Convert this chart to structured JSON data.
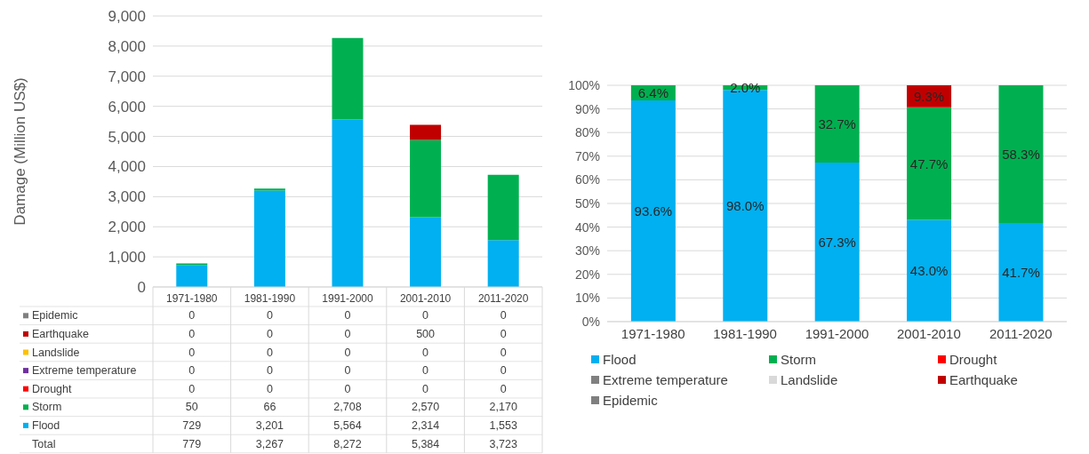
{
  "chart_data": [
    {
      "type": "bar",
      "stacked": true,
      "ylabel": "Damage (Million US$)",
      "categories": [
        "1971-1980",
        "1981-1990",
        "1991-2000",
        "2001-2010",
        "2011-2020"
      ],
      "series": [
        {
          "name": "Flood",
          "color": "#00b0f0",
          "values": [
            729,
            3201,
            5564,
            2314,
            1553
          ],
          "value_labels": [
            "729",
            "3,201",
            "5,564",
            "2,314",
            "1,553"
          ]
        },
        {
          "name": "Storm",
          "color": "#00b050",
          "values": [
            50,
            66,
            2708,
            2570,
            2170
          ],
          "value_labels": [
            "50",
            "66",
            "2,708",
            "2,570",
            "2,170"
          ]
        },
        {
          "name": "Drought",
          "color": "#ff0000",
          "values": [
            0,
            0,
            0,
            0,
            0
          ],
          "value_labels": [
            "0",
            "0",
            "0",
            "0",
            "0"
          ]
        },
        {
          "name": "Extreme temperature",
          "color": "#7030a0",
          "values": [
            0,
            0,
            0,
            0,
            0
          ],
          "value_labels": [
            "0",
            "0",
            "0",
            "0",
            "0"
          ]
        },
        {
          "name": "Landslide",
          "color": "#ffc000",
          "values": [
            0,
            0,
            0,
            0,
            0
          ],
          "value_labels": [
            "0",
            "0",
            "0",
            "0",
            "0"
          ]
        },
        {
          "name": "Earthquake",
          "color": "#c00000",
          "values": [
            0,
            0,
            0,
            500,
            0
          ],
          "value_labels": [
            "0",
            "0",
            "0",
            "500",
            "0"
          ]
        },
        {
          "name": "Epidemic",
          "color": "#808080",
          "values": [
            0,
            0,
            0,
            0,
            0
          ],
          "value_labels": [
            "0",
            "0",
            "0",
            "0",
            "0"
          ]
        }
      ],
      "annotations": [
        "Total",
        "779",
        "3,267",
        "8,272",
        "5,384",
        "3,723"
      ],
      "ylim": [
        0,
        9000
      ],
      "yticks": [
        0,
        {
          "value": 1000,
          "label": "1,000"
        },
        {
          "value": 2000,
          "label": "2,000"
        },
        {
          "value": 3000,
          "label": "3,000"
        },
        {
          "value": 4000,
          "label": "4,000"
        },
        {
          "value": 5000,
          "label": "5,000"
        },
        {
          "value": 6000,
          "label": "6,000"
        },
        {
          "value": 7000,
          "label": "7,000"
        },
        {
          "value": 8000,
          "label": "8,000"
        },
        {
          "value": 9000,
          "label": "9,000"
        }
      ],
      "grid": "y",
      "legend": "bottom"
    },
    {
      "type": "bar",
      "stacked": true,
      "categories": [
        "1971-1980",
        "1981-1990",
        "1991-2000",
        "2001-2010",
        "2011-2020"
      ],
      "series": [
        {
          "name": "Flood",
          "color": "#00b0f0",
          "values": [
            93.6,
            98.0,
            67.3,
            43.0,
            41.7
          ],
          "value_labels": [
            "93.6%",
            "98.0%",
            "67.3%",
            "43.0%",
            "41.7%"
          ]
        },
        {
          "name": "Storm",
          "color": "#00b050",
          "values": [
            6.4,
            2.0,
            32.7,
            47.7,
            58.3
          ],
          "value_labels": [
            "6.4%",
            "2.0%",
            "32.7%",
            "47.7%",
            "58.3%"
          ]
        },
        {
          "name": "Drought",
          "color": "#ff0000",
          "values": [
            0,
            0,
            0,
            0,
            0
          ]
        },
        {
          "name": "Extreme temperature",
          "color": "#808080",
          "values": [
            0,
            0,
            0,
            0,
            0
          ]
        },
        {
          "name": "Landslide",
          "color": "#d9d9d9",
          "values": [
            0,
            0,
            0,
            0,
            0
          ]
        },
        {
          "name": "Earthquake",
          "color": "#c00000",
          "values": [
            0,
            0,
            0,
            9.3,
            0
          ],
          "value_labels": [
            null,
            null,
            null,
            "9.3%",
            null
          ]
        },
        {
          "name": "Epidemic",
          "color": "#7f7f7f",
          "values": [
            0,
            0,
            0,
            0,
            0
          ]
        }
      ],
      "ylim": [
        0,
        100
      ],
      "yticks": [
        {
          "value": 0,
          "label": "0%"
        },
        {
          "value": 10,
          "label": "10%"
        },
        {
          "value": 20,
          "label": "20%"
        },
        {
          "value": 30,
          "label": "30%"
        },
        {
          "value": 40,
          "label": "40%"
        },
        {
          "value": 50,
          "label": "50%"
        },
        {
          "value": 60,
          "label": "60%"
        },
        {
          "value": 70,
          "label": "70%"
        },
        {
          "value": 80,
          "label": "80%"
        },
        {
          "value": 90,
          "label": "90%"
        },
        {
          "value": 100,
          "label": "100%"
        }
      ],
      "grid": "y",
      "legend": "bottom"
    }
  ]
}
